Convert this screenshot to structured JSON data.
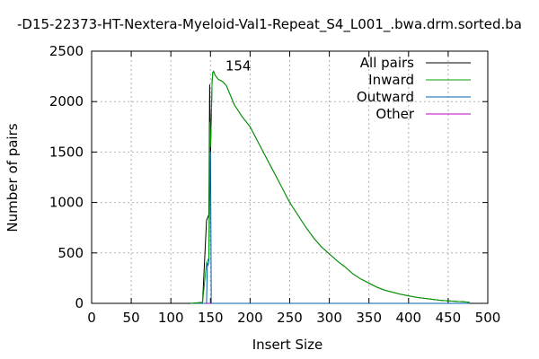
{
  "chart_data": {
    "type": "line",
    "title": "-D15-22373-HT-Nextera-Myeloid-Val1-Repeat_S4_L001_.bwa.drm.sorted.ba",
    "xlabel": "Insert Size",
    "ylabel": "Number of pairs",
    "xlim": [
      0,
      500
    ],
    "ylim": [
      0,
      2500
    ],
    "xticks": [
      0,
      50,
      100,
      150,
      200,
      250,
      300,
      350,
      400,
      450,
      500
    ],
    "yticks": [
      0,
      500,
      1000,
      1500,
      2000,
      2500
    ],
    "grid": true,
    "legend_position": "top-right",
    "annotation": "154",
    "series": [
      {
        "name": "All pairs",
        "color": "#000000",
        "x": [
          125,
          140,
          145,
          148,
          149,
          150,
          151,
          152,
          153,
          154,
          156,
          160,
          165,
          170,
          180,
          190,
          200,
          210,
          220,
          230,
          240,
          250,
          260,
          270,
          280,
          290,
          300,
          310,
          320,
          330,
          340,
          350,
          360,
          370,
          380,
          390,
          400,
          410,
          420,
          430,
          440,
          450,
          460,
          470,
          477
        ],
        "y": [
          0,
          10,
          820,
          880,
          2170,
          1500,
          1820,
          2200,
          2290,
          2300,
          2260,
          2220,
          2200,
          2160,
          1970,
          1850,
          1750,
          1600,
          1450,
          1300,
          1150,
          1000,
          880,
          760,
          650,
          560,
          490,
          420,
          360,
          290,
          240,
          200,
          160,
          130,
          110,
          90,
          75,
          60,
          50,
          40,
          30,
          25,
          20,
          15,
          10
        ]
      },
      {
        "name": "Inward",
        "color": "#00a000",
        "x": [
          125,
          140,
          145,
          148,
          149,
          150,
          151,
          152,
          153,
          154,
          156,
          160,
          165,
          170,
          180,
          190,
          200,
          210,
          220,
          230,
          240,
          250,
          260,
          270,
          280,
          290,
          300,
          310,
          320,
          330,
          340,
          350,
          360,
          370,
          380,
          390,
          400,
          410,
          420,
          430,
          440,
          450,
          460,
          470,
          477
        ],
        "y": [
          0,
          8,
          400,
          450,
          1800,
          1550,
          1800,
          2200,
          2290,
          2300,
          2260,
          2220,
          2200,
          2160,
          1970,
          1850,
          1750,
          1600,
          1450,
          1300,
          1150,
          1000,
          880,
          760,
          650,
          560,
          490,
          420,
          360,
          290,
          240,
          200,
          160,
          130,
          110,
          90,
          75,
          60,
          50,
          40,
          30,
          25,
          20,
          15,
          10
        ]
      },
      {
        "name": "Outward",
        "color": "#0060ad",
        "x": [
          125,
          145,
          146,
          147,
          148,
          149,
          150,
          151,
          155,
          160,
          477
        ],
        "y": [
          0,
          0,
          400,
          380,
          420,
          1000,
          1600,
          0,
          0,
          0,
          0
        ]
      },
      {
        "name": "Other",
        "color": "#c000c0",
        "x": [
          125,
          477
        ],
        "y": [
          0,
          0
        ]
      }
    ]
  }
}
